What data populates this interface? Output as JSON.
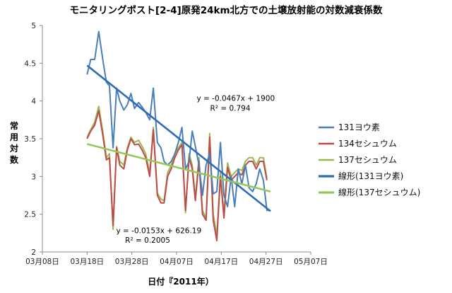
{
  "chart_data": {
    "type": "line",
    "title": "モニタリングポスト[2-4]原発24km北方での土壌放射能の対数減衰係数",
    "xlabel": "日付『2011年）",
    "ylabel": "常用対数",
    "ylim": [
      2,
      5
    ],
    "yticks": [
      "2",
      "2.5",
      "3",
      "3.5",
      "4",
      "4.5",
      "5"
    ],
    "ytick_values": [
      2,
      2.5,
      3,
      3.5,
      4,
      4.5,
      5
    ],
    "xlim": [
      0,
      60
    ],
    "xticks": [
      "03月08日",
      "03月18日",
      "03月28日",
      "04月07日",
      "04月17日",
      "04月27日",
      "05月07日"
    ],
    "xtick_values": [
      0,
      10,
      20,
      30,
      40,
      50,
      60
    ],
    "x_origin_date": "2011-03-08",
    "series": [
      {
        "name": "131ヨウ素",
        "color": "#4a7ebb",
        "x": [
          10,
          10.4,
          10.8,
          11.7,
          12.6,
          13.5,
          14.3,
          15,
          15.8,
          16.6,
          17.3,
          18.2,
          19,
          19.8,
          20.6,
          21.5,
          22.3,
          23.1,
          24,
          24.8,
          25.7,
          26.5,
          27.2,
          28,
          28.8,
          29.6,
          30.4,
          31.2,
          32,
          32.8,
          33.5,
          34.2,
          35,
          35.8,
          36.6,
          37.4,
          38.2,
          39,
          39.8,
          40.6,
          41.4,
          42.2,
          43,
          43.8,
          44.6,
          45.4,
          46.2,
          47,
          47.8,
          48.6,
          49.4,
          50.2,
          51
        ],
        "y": [
          4.35,
          4.45,
          4.55,
          4.55,
          4.92,
          4.55,
          4.25,
          4.2,
          3.38,
          4.17,
          4.0,
          3.88,
          3.95,
          4.1,
          3.9,
          3.98,
          3.92,
          3.85,
          3.75,
          4.17,
          3.45,
          3.38,
          3.2,
          3.15,
          3.2,
          3.3,
          3.45,
          3.65,
          3.1,
          3.2,
          3.6,
          3.4,
          3.15,
          2.75,
          3.15,
          3.3,
          2.77,
          2.8,
          3.45,
          2.75,
          2.6,
          3.0,
          2.6,
          3.1,
          2.9,
          3.15,
          2.85,
          2.8,
          2.9,
          3.1,
          2.95,
          2.55,
          2.55
        ]
      },
      {
        "name": "134セシュウム",
        "color": "#be4b48",
        "x": [
          10,
          10.8,
          11.7,
          12.6,
          13.5,
          14.3,
          15,
          15.8,
          16.6,
          17.3,
          18.2,
          19,
          19.8,
          20.6,
          21.5,
          22.3,
          23.1,
          24,
          24.8,
          25.7,
          26.5,
          27.2,
          28,
          28.8,
          29.6,
          30.4,
          31.2,
          32,
          32.8,
          33.5,
          34.2,
          35,
          35.8,
          36.6,
          37.4,
          38.2,
          39,
          39.8,
          40.6,
          41.4,
          42.2,
          43,
          43.8,
          44.6,
          45.4,
          46.2,
          47,
          47.8,
          48.6,
          49.4,
          50.2
        ],
        "y": [
          3.5,
          3.6,
          3.68,
          3.87,
          3.55,
          3.22,
          3.25,
          2.35,
          3.38,
          3.15,
          3.1,
          3.35,
          3.5,
          3.42,
          3.43,
          3.35,
          3.25,
          3.0,
          3.62,
          2.75,
          2.65,
          2.65,
          3.0,
          3.1,
          3.25,
          3.35,
          3.42,
          2.55,
          3.25,
          3.1,
          2.68,
          3.2,
          2.5,
          2.42,
          3.52,
          2.42,
          2.15,
          3.0,
          2.45,
          3.12,
          2.95,
          3.0,
          3.05,
          3.02,
          3.15,
          3.2,
          3.2,
          3.1,
          3.2,
          3.2,
          2.95
        ]
      },
      {
        "name": "137セシュウム",
        "color": "#98b954",
        "x": [
          10,
          10.8,
          11.7,
          12.6,
          13.5,
          14.3,
          15,
          15.8,
          16.6,
          17.3,
          18.2,
          19,
          19.8,
          20.6,
          21.5,
          22.3,
          23.1,
          24,
          24.8,
          25.7,
          26.5,
          27.2,
          28,
          28.8,
          29.6,
          30.4,
          31.2,
          32,
          32.8,
          33.5,
          34.2,
          35,
          35.8,
          36.6,
          37.4,
          38.2,
          39,
          39.8,
          40.6,
          41.4,
          42.2,
          43,
          43.8,
          44.6,
          45.4,
          46.2,
          47,
          47.8,
          48.6,
          49.4,
          50.2
        ],
        "y": [
          3.52,
          3.62,
          3.72,
          3.93,
          3.6,
          3.25,
          3.3,
          2.3,
          3.4,
          3.2,
          3.15,
          3.38,
          3.52,
          3.45,
          3.48,
          3.4,
          3.3,
          3.05,
          3.65,
          2.78,
          2.7,
          2.68,
          3.05,
          3.15,
          3.3,
          3.38,
          3.45,
          2.52,
          3.3,
          3.15,
          2.72,
          3.25,
          2.55,
          2.45,
          3.57,
          2.5,
          2.22,
          3.05,
          2.5,
          3.18,
          3.0,
          3.05,
          3.1,
          3.08,
          3.2,
          3.25,
          3.25,
          3.15,
          3.25,
          3.25,
          2.98
        ]
      }
    ],
    "trendlines": [
      {
        "name": "線形(131ヨウ素)",
        "color": "#2e6db4",
        "x": [
          10,
          51
        ],
        "y": [
          4.47,
          2.54
        ]
      },
      {
        "name": "線形(137セシュウム)",
        "color": "#92c85a",
        "x": [
          10,
          51
        ],
        "y": [
          3.43,
          2.8
        ]
      }
    ],
    "annotations": [
      {
        "id": "iodine_eq",
        "text": "y = -0.0467x + 1900",
        "anchor_x": 34.5,
        "anchor_y": 4.0
      },
      {
        "id": "iodine_r2",
        "text": "R² = 0.794",
        "anchor_x": 37.5,
        "anchor_y": 3.87
      },
      {
        "id": "cesium_eq",
        "text": "y = -0.0153x + 626.19",
        "anchor_x": 16.5,
        "anchor_y": 2.25
      },
      {
        "id": "cesium_r2",
        "text": "R² = 0.2005",
        "anchor_x": 18.5,
        "anchor_y": 2.12
      }
    ],
    "legend": {
      "position": "right",
      "entries": [
        "131ヨウ素",
        "134セシュウム",
        "137セシュウム",
        "線形(131ヨウ素)",
        "線形(137セシュウム)"
      ]
    },
    "grid": false
  }
}
